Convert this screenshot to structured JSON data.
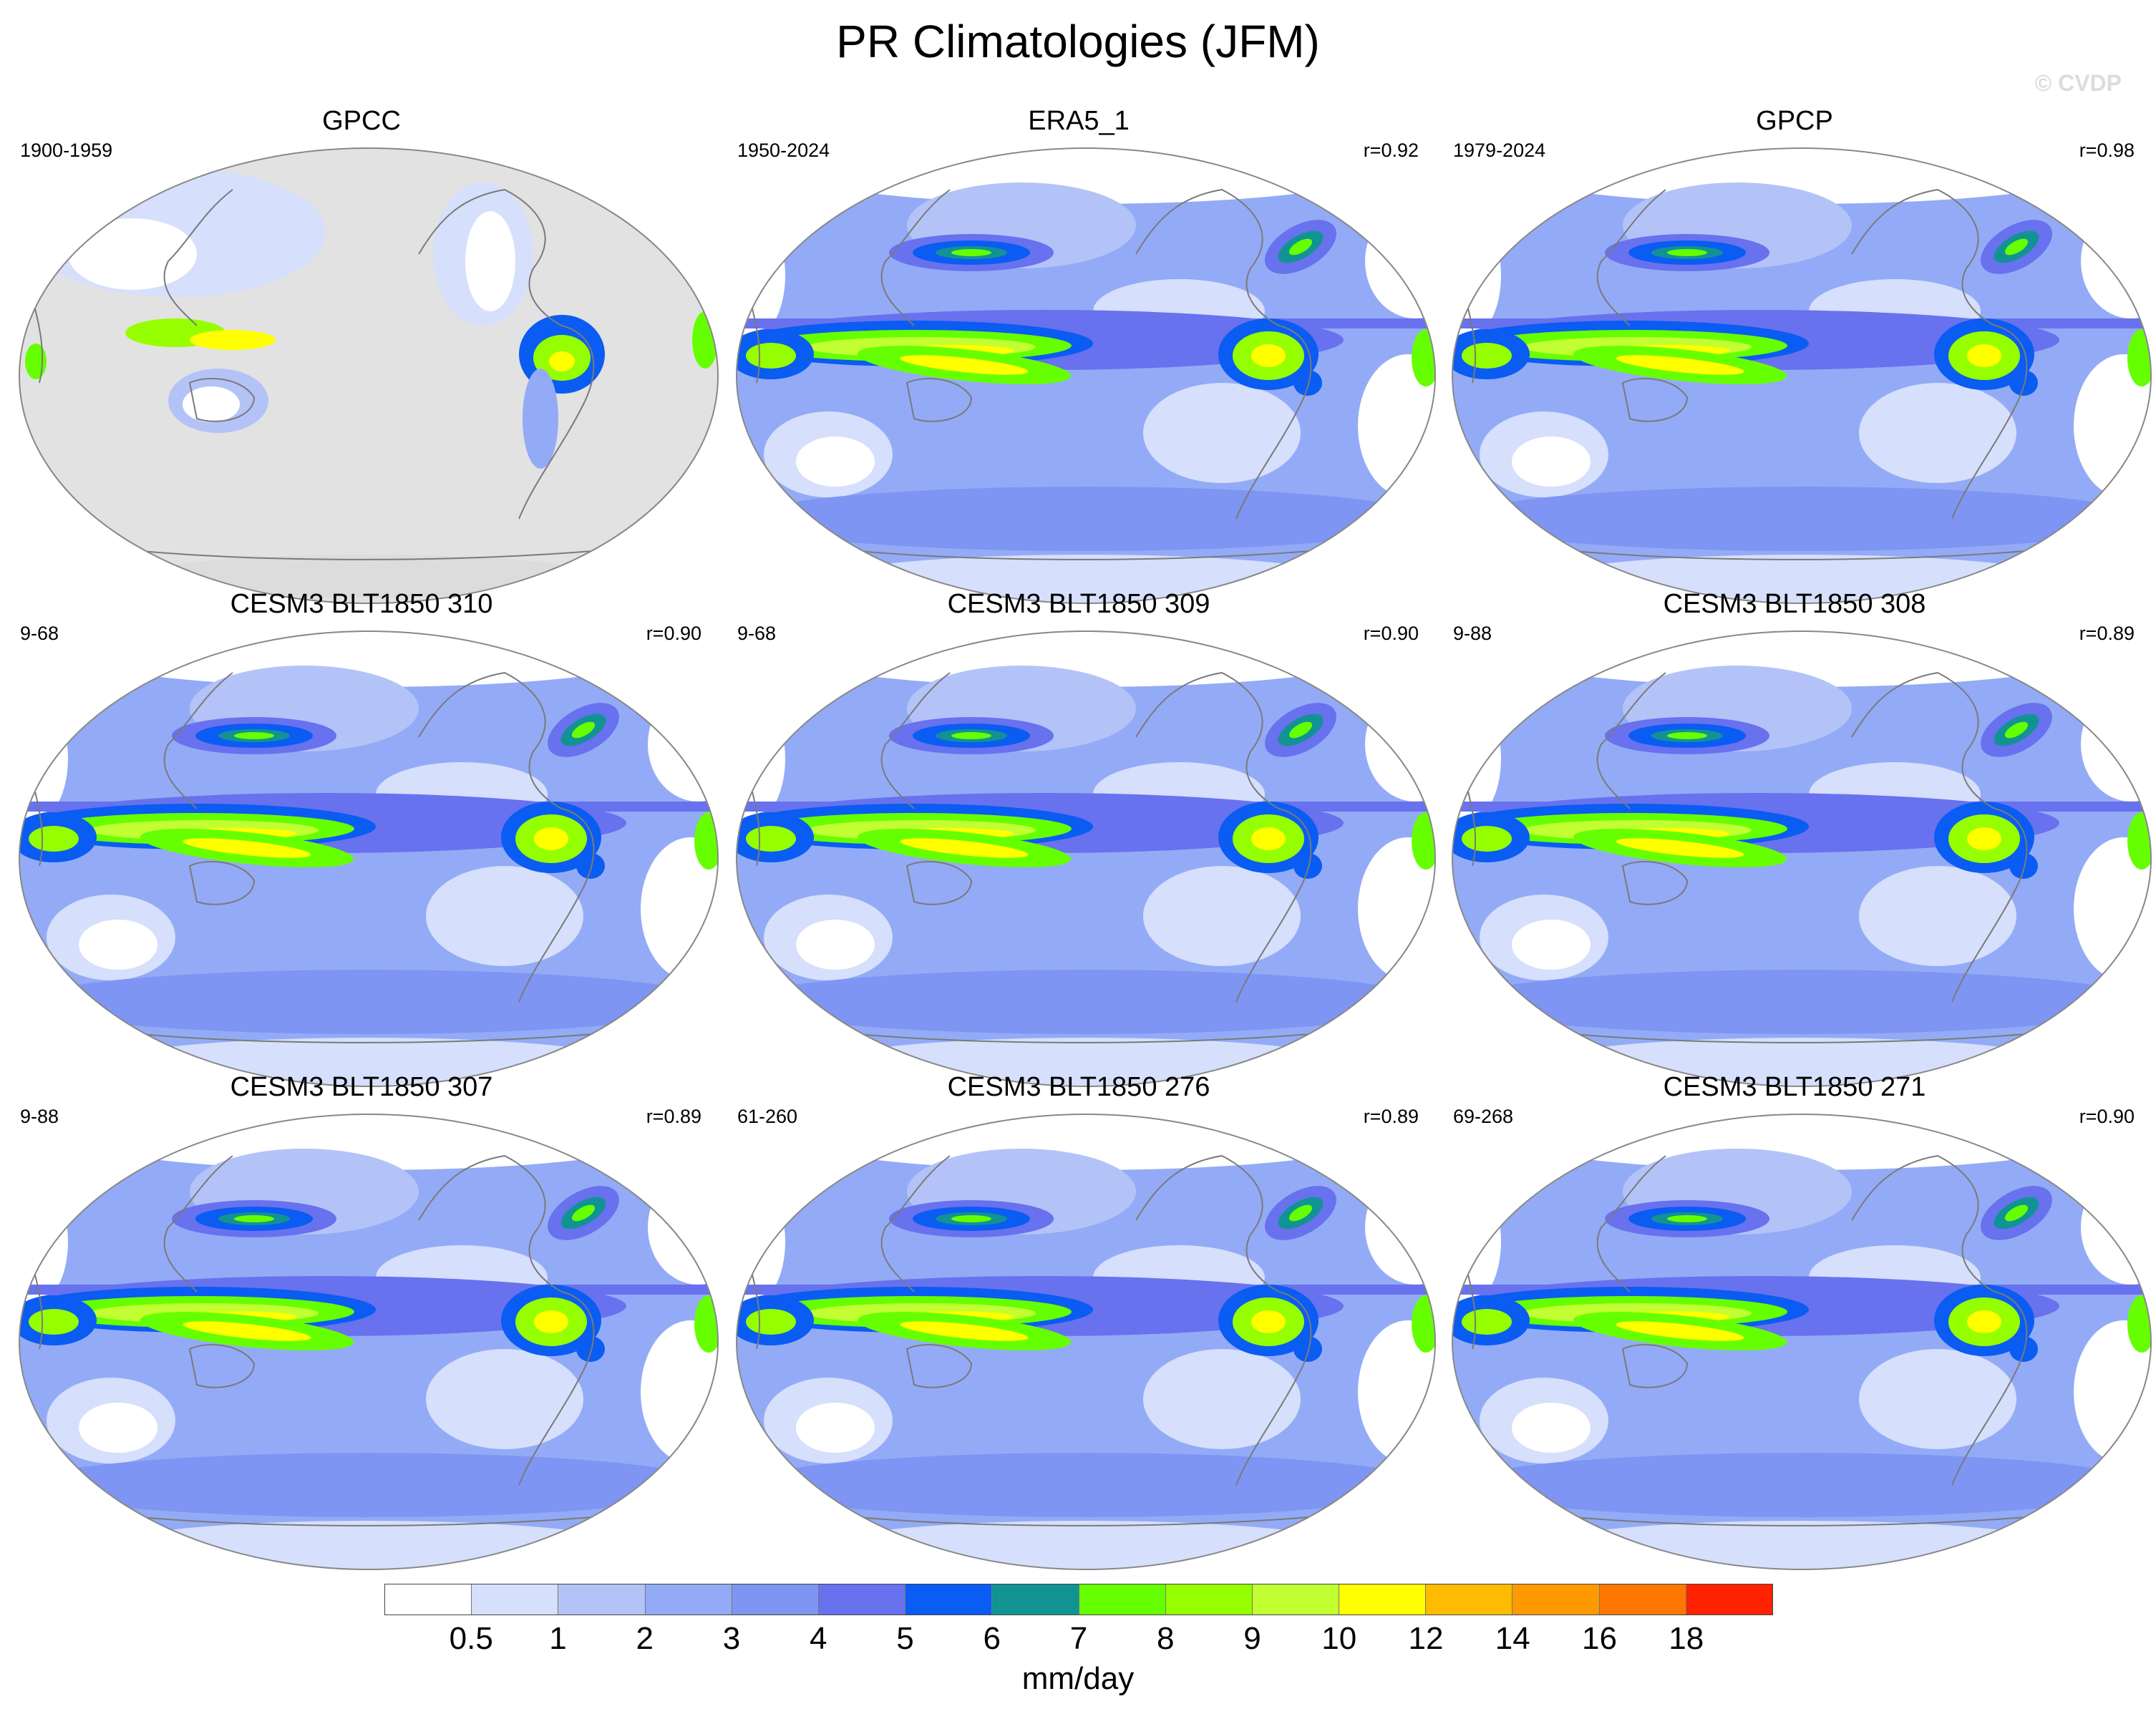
{
  "chart_data": {
    "type": "heatmap",
    "title": "PR Climatologies (JFM)",
    "watermark": "© CVDP",
    "projection": "global map (Pacific-centered)",
    "colorbar": {
      "units": "mm/day",
      "levels": [
        "0.5",
        "1",
        "2",
        "3",
        "4",
        "5",
        "6",
        "7",
        "8",
        "9",
        "10",
        "12",
        "14",
        "16",
        "18"
      ],
      "colors": [
        "#ffffff",
        "#d6dffb",
        "#b4c3f7",
        "#93abf6",
        "#7f95f3",
        "#6871ee",
        "#0a5cf2",
        "#119393",
        "#66ff00",
        "#95ff00",
        "#c1ff33",
        "#ffff00",
        "#ffbb00",
        "#ff9900",
        "#ff7700",
        "#ff2200"
      ]
    },
    "panels": [
      {
        "title": "GPCC",
        "period": "1900-1959",
        "r": "",
        "land_only": true
      },
      {
        "title": "ERA5_1",
        "period": "1950-2024",
        "r": "r=0.92",
        "land_only": false
      },
      {
        "title": "GPCP",
        "period": "1979-2024",
        "r": "r=0.98",
        "land_only": false
      },
      {
        "title": "CESM3 BLT1850 310",
        "period": "9-68",
        "r": "r=0.90",
        "land_only": false
      },
      {
        "title": "CESM3 BLT1850 309",
        "period": "9-68",
        "r": "r=0.90",
        "land_only": false
      },
      {
        "title": "CESM3 BLT1850 308",
        "period": "9-88",
        "r": "r=0.89",
        "land_only": false
      },
      {
        "title": "CESM3 BLT1850 307",
        "period": "9-88",
        "r": "r=0.89",
        "land_only": false
      },
      {
        "title": "CESM3 BLT1850 276",
        "period": "61-260",
        "r": "r=0.89",
        "land_only": false
      },
      {
        "title": "CESM3 BLT1850 271",
        "period": "69-268",
        "r": "r=0.90",
        "land_only": false
      }
    ]
  }
}
